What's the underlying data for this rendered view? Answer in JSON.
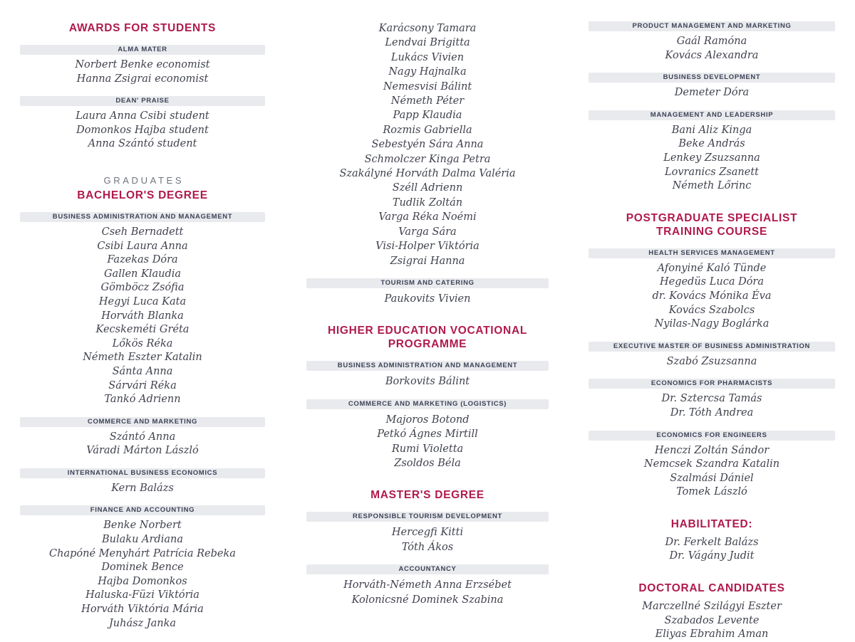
{
  "page": {
    "colors": {
      "accent": "#b01a4d",
      "category_bar_background": "#e9eaed",
      "category_text": "#3c4357",
      "name_text": "#40434e",
      "kicker_text": "#6e737d",
      "page_background": "#ffffff"
    }
  },
  "columns": [
    {
      "name": "left",
      "blocks": [
        {
          "t": "title",
          "text": "AWARDS FOR STUDENTS"
        },
        {
          "t": "cat",
          "text": "ALMA MATER"
        },
        {
          "t": "name",
          "text": "Norbert Benke economist"
        },
        {
          "t": "name",
          "text": "Hanna Zsigrai economist"
        },
        {
          "t": "cat",
          "text": "DEAN' PRAISE"
        },
        {
          "t": "name",
          "text": "Laura Anna Csibi student"
        },
        {
          "t": "name",
          "text": "Domonkos Hajba student"
        },
        {
          "t": "name",
          "text": "Anna Szántó student"
        },
        {
          "t": "kicker",
          "text": "GRADUATES"
        },
        {
          "t": "title",
          "text": "BACHELOR'S DEGREE"
        },
        {
          "t": "cat",
          "text": "BUSINESS ADMINISTRATION AND MANAGEMENT"
        },
        {
          "t": "name",
          "text": "Cseh Bernadett"
        },
        {
          "t": "name",
          "text": "Csibi Laura Anna"
        },
        {
          "t": "name",
          "text": "Fazekas Dóra"
        },
        {
          "t": "name",
          "text": "Gallen Klaudia"
        },
        {
          "t": "name",
          "text": "Gömböcz Zsófia"
        },
        {
          "t": "name",
          "text": "Hegyi Luca Kata"
        },
        {
          "t": "name",
          "text": "Horváth Blanka"
        },
        {
          "t": "name",
          "text": "Kecskeméti Gréta"
        },
        {
          "t": "name",
          "text": "Lőkös Réka"
        },
        {
          "t": "name",
          "text": "Németh Eszter Katalin"
        },
        {
          "t": "name",
          "text": "Sánta Anna"
        },
        {
          "t": "name",
          "text": "Sárvári Réka"
        },
        {
          "t": "name",
          "text": "Tankó Adrienn"
        },
        {
          "t": "cat",
          "text": "COMMERCE AND MARKETING"
        },
        {
          "t": "name",
          "text": "Szántó Anna"
        },
        {
          "t": "name",
          "text": "Váradi Márton László"
        },
        {
          "t": "cat",
          "text": "INTERNATIONAL BUSINESS ECONOMICS"
        },
        {
          "t": "name",
          "text": "Kern Balázs"
        },
        {
          "t": "cat",
          "text": "FINANCE AND ACCOUNTING"
        },
        {
          "t": "name",
          "text": "Benke Norbert"
        },
        {
          "t": "name",
          "text": "Bulaku Ardiana"
        },
        {
          "t": "name",
          "text": "Chapóné Menyhárt Patrícia Rebeka"
        },
        {
          "t": "name",
          "text": "Dominek Bence"
        },
        {
          "t": "name",
          "text": "Hajba Domonkos"
        },
        {
          "t": "name",
          "text": "Haluska-Füzi Viktória"
        },
        {
          "t": "name",
          "text": "Horváth Viktória Mária"
        },
        {
          "t": "name",
          "text": "Juhász Janka"
        }
      ]
    },
    {
      "name": "middle",
      "blocks": [
        {
          "t": "name",
          "text": "Karácsony Tamara"
        },
        {
          "t": "name",
          "text": "Lendvai Brigitta"
        },
        {
          "t": "name",
          "text": "Lukács Vivien"
        },
        {
          "t": "name",
          "text": "Nagy Hajnalka"
        },
        {
          "t": "name",
          "text": "Nemesvisi Bálint"
        },
        {
          "t": "name",
          "text": "Németh Péter"
        },
        {
          "t": "name",
          "text": "Papp Klaudia"
        },
        {
          "t": "name",
          "text": "Rozmis Gabriella"
        },
        {
          "t": "name",
          "text": "Sebestyén Sára Anna"
        },
        {
          "t": "name",
          "text": "Schmolczer Kinga Petra"
        },
        {
          "t": "name",
          "text": "Szakályné Horváth Dalma Valéria"
        },
        {
          "t": "name",
          "text": "Széll Adrienn"
        },
        {
          "t": "name",
          "text": "Tudlik Zoltán"
        },
        {
          "t": "name",
          "text": "Varga Réka Noémi"
        },
        {
          "t": "name",
          "text": "Varga Sára"
        },
        {
          "t": "name",
          "text": "Visi-Holper Viktória"
        },
        {
          "t": "name",
          "text": "Zsigrai Hanna"
        },
        {
          "t": "cat",
          "text": "TOURISM AND CATERING"
        },
        {
          "t": "name",
          "text": "Paukovits Vivien"
        },
        {
          "t": "title",
          "text": "HIGHER EDUCATION VOCATIONAL PROGRAMME"
        },
        {
          "t": "cat",
          "text": "BUSINESS ADMINISTRATION AND MANAGEMENT"
        },
        {
          "t": "name",
          "text": "Borkovits Bálint"
        },
        {
          "t": "cat",
          "text": "COMMERCE AND MARKETING (LOGISTICS)"
        },
        {
          "t": "name",
          "text": "Majoros Botond"
        },
        {
          "t": "name",
          "text": "Petkó Ágnes Mirtill"
        },
        {
          "t": "name",
          "text": "Rumi Violetta"
        },
        {
          "t": "name",
          "text": "Zsoldos Béla"
        },
        {
          "t": "title",
          "text": "MASTER'S DEGREE"
        },
        {
          "t": "cat",
          "text": "RESPONSIBLE TOURISM DEVELOPMENT"
        },
        {
          "t": "name",
          "text": "Hercegfi Kitti"
        },
        {
          "t": "name",
          "text": "Tóth Ákos"
        },
        {
          "t": "cat",
          "text": "ACCOUNTANCY"
        },
        {
          "t": "name",
          "text": "Horváth-Németh Anna Erzsébet"
        },
        {
          "t": "name",
          "text": "Kolonicsné Dominek Szabina"
        }
      ]
    },
    {
      "name": "right",
      "blocks": [
        {
          "t": "cat",
          "text": "PRODUCT MANAGEMENT AND MARKETING"
        },
        {
          "t": "name",
          "text": "Gaál Ramóna"
        },
        {
          "t": "name",
          "text": "Kovács Alexandra"
        },
        {
          "t": "cat",
          "text": "BUSINESS DEVELOPMENT"
        },
        {
          "t": "name",
          "text": "Demeter Dóra"
        },
        {
          "t": "cat",
          "text": "MANAGEMENT AND LEADERSHIP"
        },
        {
          "t": "name",
          "text": "Bani Aliz Kinga"
        },
        {
          "t": "name",
          "text": "Beke András"
        },
        {
          "t": "name",
          "text": "Lenkey Zsuzsanna"
        },
        {
          "t": "name",
          "text": "Lovranics Zsanett"
        },
        {
          "t": "name",
          "text": "Németh Lőrinc"
        },
        {
          "t": "title",
          "text": "POSTGRADUATE SPECIALIST TRAINING COURSE"
        },
        {
          "t": "cat",
          "text": "HEALTH SERVICES MANAGEMENT"
        },
        {
          "t": "name",
          "text": "Afonyiné Kaló Tünde"
        },
        {
          "t": "name",
          "text": "Hegedüs Luca Dóra"
        },
        {
          "t": "name",
          "text": "dr. Kovács Mónika Éva"
        },
        {
          "t": "name",
          "text": "Kovács Szabolcs"
        },
        {
          "t": "name",
          "text": "Nyilas-Nagy Boglárka"
        },
        {
          "t": "cat",
          "text": "EXECUTIVE MASTER OF BUSINESS ADMINISTRATION"
        },
        {
          "t": "name",
          "text": "Szabó Zsuzsanna"
        },
        {
          "t": "cat",
          "text": "ECONOMICS FOR PHARMACISTS"
        },
        {
          "t": "name",
          "text": "Dr. Sztercsa Tamás"
        },
        {
          "t": "name",
          "text": "Dr. Tóth Andrea"
        },
        {
          "t": "cat",
          "text": "ECONOMICS FOR ENGINEERS"
        },
        {
          "t": "name",
          "text": "Henczi Zoltán Sándor"
        },
        {
          "t": "name",
          "text": "Nemcsek Szandra Katalin"
        },
        {
          "t": "name",
          "text": "Szalmási Dániel"
        },
        {
          "t": "name",
          "text": "Tomek László"
        },
        {
          "t": "title",
          "text": "HABILITATED:"
        },
        {
          "t": "name",
          "text": "Dr. Ferkelt Balázs"
        },
        {
          "t": "name",
          "text": "Dr. Vágány Judit"
        },
        {
          "t": "title",
          "text": "DOCTORAL CANDIDATES"
        },
        {
          "t": "name",
          "text": "Marczellné Szilágyi Eszter"
        },
        {
          "t": "name",
          "text": "Szabados Levente"
        },
        {
          "t": "name",
          "text": "Eliyas Ebrahim Aman"
        }
      ]
    }
  ]
}
